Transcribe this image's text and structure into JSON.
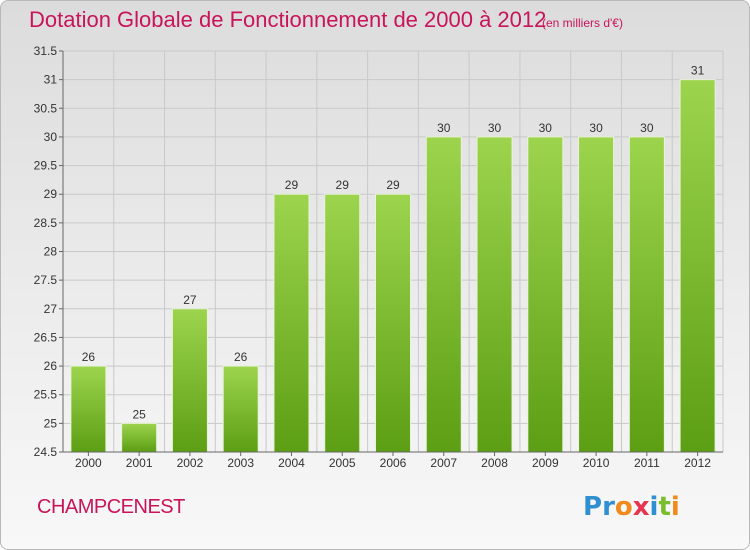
{
  "header": {
    "title": "Dotation Globale de Fonctionnement de 2000 à 2012",
    "subtitle": "(en milliers d'€)"
  },
  "footer": {
    "commune": "CHAMPCENEST",
    "logo": "Proxiti"
  },
  "chart_data": {
    "type": "bar",
    "title": "Dotation Globale de Fonctionnement de 2000 à 2012",
    "subtitle": "(en milliers d'€)",
    "categories": [
      "2000",
      "2001",
      "2002",
      "2003",
      "2004",
      "2005",
      "2006",
      "2007",
      "2008",
      "2009",
      "2010",
      "2011",
      "2012"
    ],
    "values": [
      26,
      25,
      27,
      26,
      29,
      29,
      29,
      30,
      30,
      30,
      30,
      30,
      31
    ],
    "ylim": [
      24.5,
      31.5
    ],
    "yticks": [
      24.5,
      25,
      25.5,
      26,
      26.5,
      27,
      27.5,
      28,
      28.5,
      29,
      29.5,
      30,
      30.5,
      31,
      31.5
    ],
    "ytick_labels": [
      "24.5",
      "25",
      "25.5",
      "26",
      "26.5",
      "27",
      "27.5",
      "28",
      "28.5",
      "29",
      "29.5",
      "30",
      "30.5",
      "31",
      "31.5"
    ],
    "grid": true,
    "bar_color_top": "#9dd44e",
    "bar_color_bottom": "#5c9e14"
  }
}
